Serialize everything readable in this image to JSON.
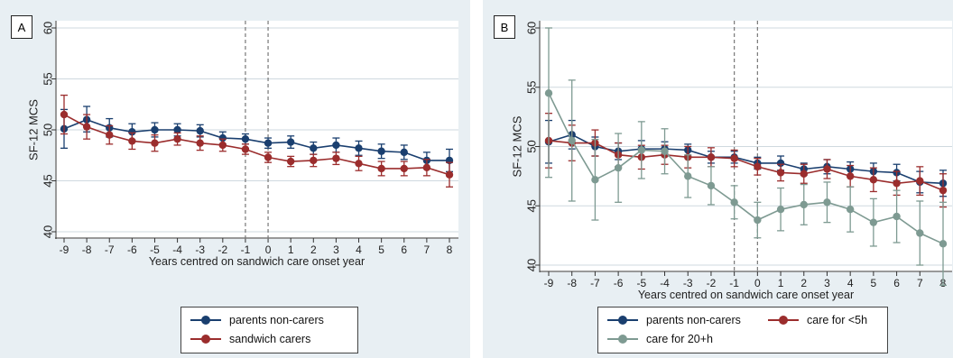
{
  "colors": {
    "navy": "#1a3f6f",
    "red": "#9b2d2d",
    "sage": "#7e9a92",
    "refline": "#777777",
    "grid": "#cfd9df"
  },
  "chart_data": [
    {
      "type": "line",
      "panel_label": "A",
      "xlabel": "Years centred on sandwich care onset year",
      "ylabel": "SF-12 MCS",
      "x": [
        -9,
        -8,
        -7,
        -6,
        -5,
        -4,
        -3,
        -2,
        -1,
        0,
        1,
        2,
        3,
        4,
        5,
        6,
        7,
        8
      ],
      "xlim": [
        -9,
        8
      ],
      "ylim": [
        40,
        60
      ],
      "yticks": [
        40,
        45,
        50,
        55,
        60
      ],
      "reference_lines_x": [
        -1,
        0
      ],
      "grid": true,
      "legend_position": "bottom",
      "series": [
        {
          "name": "parents non-carers",
          "color": "#1a3f6f",
          "values": [
            50.1,
            51.0,
            50.2,
            49.8,
            50.0,
            50.0,
            49.9,
            49.2,
            49.1,
            48.7,
            48.8,
            48.2,
            48.5,
            48.2,
            47.9,
            47.8,
            47.0,
            47.0
          ],
          "ci_low": [
            48.2,
            49.8,
            49.3,
            49.0,
            49.3,
            49.4,
            49.3,
            48.6,
            48.6,
            48.2,
            48.2,
            47.6,
            47.8,
            47.5,
            47.2,
            47.1,
            46.2,
            45.9
          ],
          "ci_high": [
            52.0,
            52.3,
            51.1,
            50.6,
            50.7,
            50.6,
            50.5,
            49.8,
            49.6,
            49.2,
            49.4,
            48.8,
            49.2,
            48.9,
            48.6,
            48.5,
            47.8,
            48.1
          ]
        },
        {
          "name": "sandwich carers",
          "color": "#9b2d2d",
          "values": [
            51.5,
            50.3,
            49.5,
            48.9,
            48.7,
            49.1,
            48.7,
            48.5,
            48.1,
            47.3,
            46.9,
            47.0,
            47.2,
            46.7,
            46.2,
            46.2,
            46.3,
            45.6
          ],
          "ci_low": [
            49.6,
            49.1,
            48.6,
            48.1,
            47.9,
            48.5,
            48.0,
            47.9,
            47.6,
            46.8,
            46.4,
            46.4,
            46.6,
            46.0,
            45.5,
            45.5,
            45.5,
            44.4
          ],
          "ci_high": [
            53.4,
            51.5,
            50.4,
            49.7,
            49.5,
            49.7,
            49.4,
            49.1,
            48.6,
            47.8,
            47.4,
            47.6,
            47.8,
            47.4,
            46.9,
            46.9,
            47.1,
            46.8
          ]
        }
      ]
    },
    {
      "type": "line",
      "panel_label": "B",
      "xlabel": "Years centred on sandwich care onset year",
      "ylabel": "SF-12 MCS",
      "x": [
        -9,
        -8,
        -7,
        -6,
        -5,
        -4,
        -3,
        -2,
        -1,
        0,
        1,
        2,
        3,
        4,
        5,
        6,
        7,
        8
      ],
      "xlim": [
        -9,
        8
      ],
      "ylim": [
        40,
        60
      ],
      "yticks": [
        40,
        45,
        50,
        55,
        60
      ],
      "reference_lines_x": [
        -1,
        0
      ],
      "grid": true,
      "legend_position": "bottom",
      "series": [
        {
          "name": "parents non-carers",
          "color": "#1a3f6f",
          "values": [
            50.4,
            51.0,
            50.0,
            49.6,
            49.8,
            49.8,
            49.7,
            49.1,
            49.1,
            48.6,
            48.6,
            48.1,
            48.3,
            48.1,
            47.9,
            47.8,
            47.0,
            46.9
          ],
          "ci_low": [
            48.6,
            49.8,
            49.2,
            48.9,
            49.1,
            49.2,
            49.2,
            48.6,
            48.6,
            48.1,
            48.0,
            47.6,
            47.7,
            47.5,
            47.2,
            47.1,
            46.1,
            45.8
          ],
          "ci_high": [
            52.2,
            52.2,
            50.8,
            50.3,
            50.5,
            50.4,
            50.2,
            49.6,
            49.6,
            49.1,
            49.2,
            48.6,
            48.9,
            48.7,
            48.6,
            48.5,
            47.9,
            48.0
          ]
        },
        {
          "name": "care for <5h",
          "color": "#9b2d2d",
          "values": [
            50.5,
            50.3,
            50.3,
            49.3,
            49.1,
            49.3,
            49.1,
            49.1,
            49.0,
            48.3,
            47.8,
            47.7,
            48.1,
            47.5,
            47.2,
            46.9,
            47.1,
            46.3
          ],
          "ci_low": [
            48.2,
            48.8,
            49.2,
            48.3,
            48.1,
            48.5,
            48.2,
            48.3,
            48.3,
            47.6,
            47.1,
            46.9,
            47.3,
            46.6,
            46.2,
            45.9,
            45.9,
            44.9
          ],
          "ci_high": [
            52.8,
            51.8,
            51.4,
            50.3,
            50.1,
            50.1,
            50.0,
            49.9,
            49.7,
            49.0,
            48.5,
            48.5,
            48.9,
            48.4,
            48.2,
            47.9,
            48.3,
            47.7
          ]
        },
        {
          "name": "care for 20+h",
          "color": "#7e9a92",
          "values": [
            54.5,
            50.5,
            47.2,
            48.2,
            49.7,
            49.6,
            47.5,
            46.7,
            45.3,
            43.8,
            44.7,
            45.1,
            45.3,
            44.7,
            43.6,
            44.1,
            42.7,
            41.8
          ],
          "ci_low": [
            47.4,
            45.4,
            43.8,
            45.3,
            47.3,
            47.7,
            45.7,
            45.1,
            43.9,
            42.3,
            42.9,
            43.4,
            43.6,
            42.8,
            41.6,
            41.9,
            40.0,
            38.3
          ],
          "ci_high": [
            60.0,
            55.6,
            50.6,
            51.1,
            52.1,
            51.5,
            49.3,
            48.3,
            46.7,
            45.3,
            46.5,
            46.8,
            47.0,
            46.6,
            45.6,
            46.3,
            45.4,
            45.3
          ]
        }
      ]
    }
  ]
}
